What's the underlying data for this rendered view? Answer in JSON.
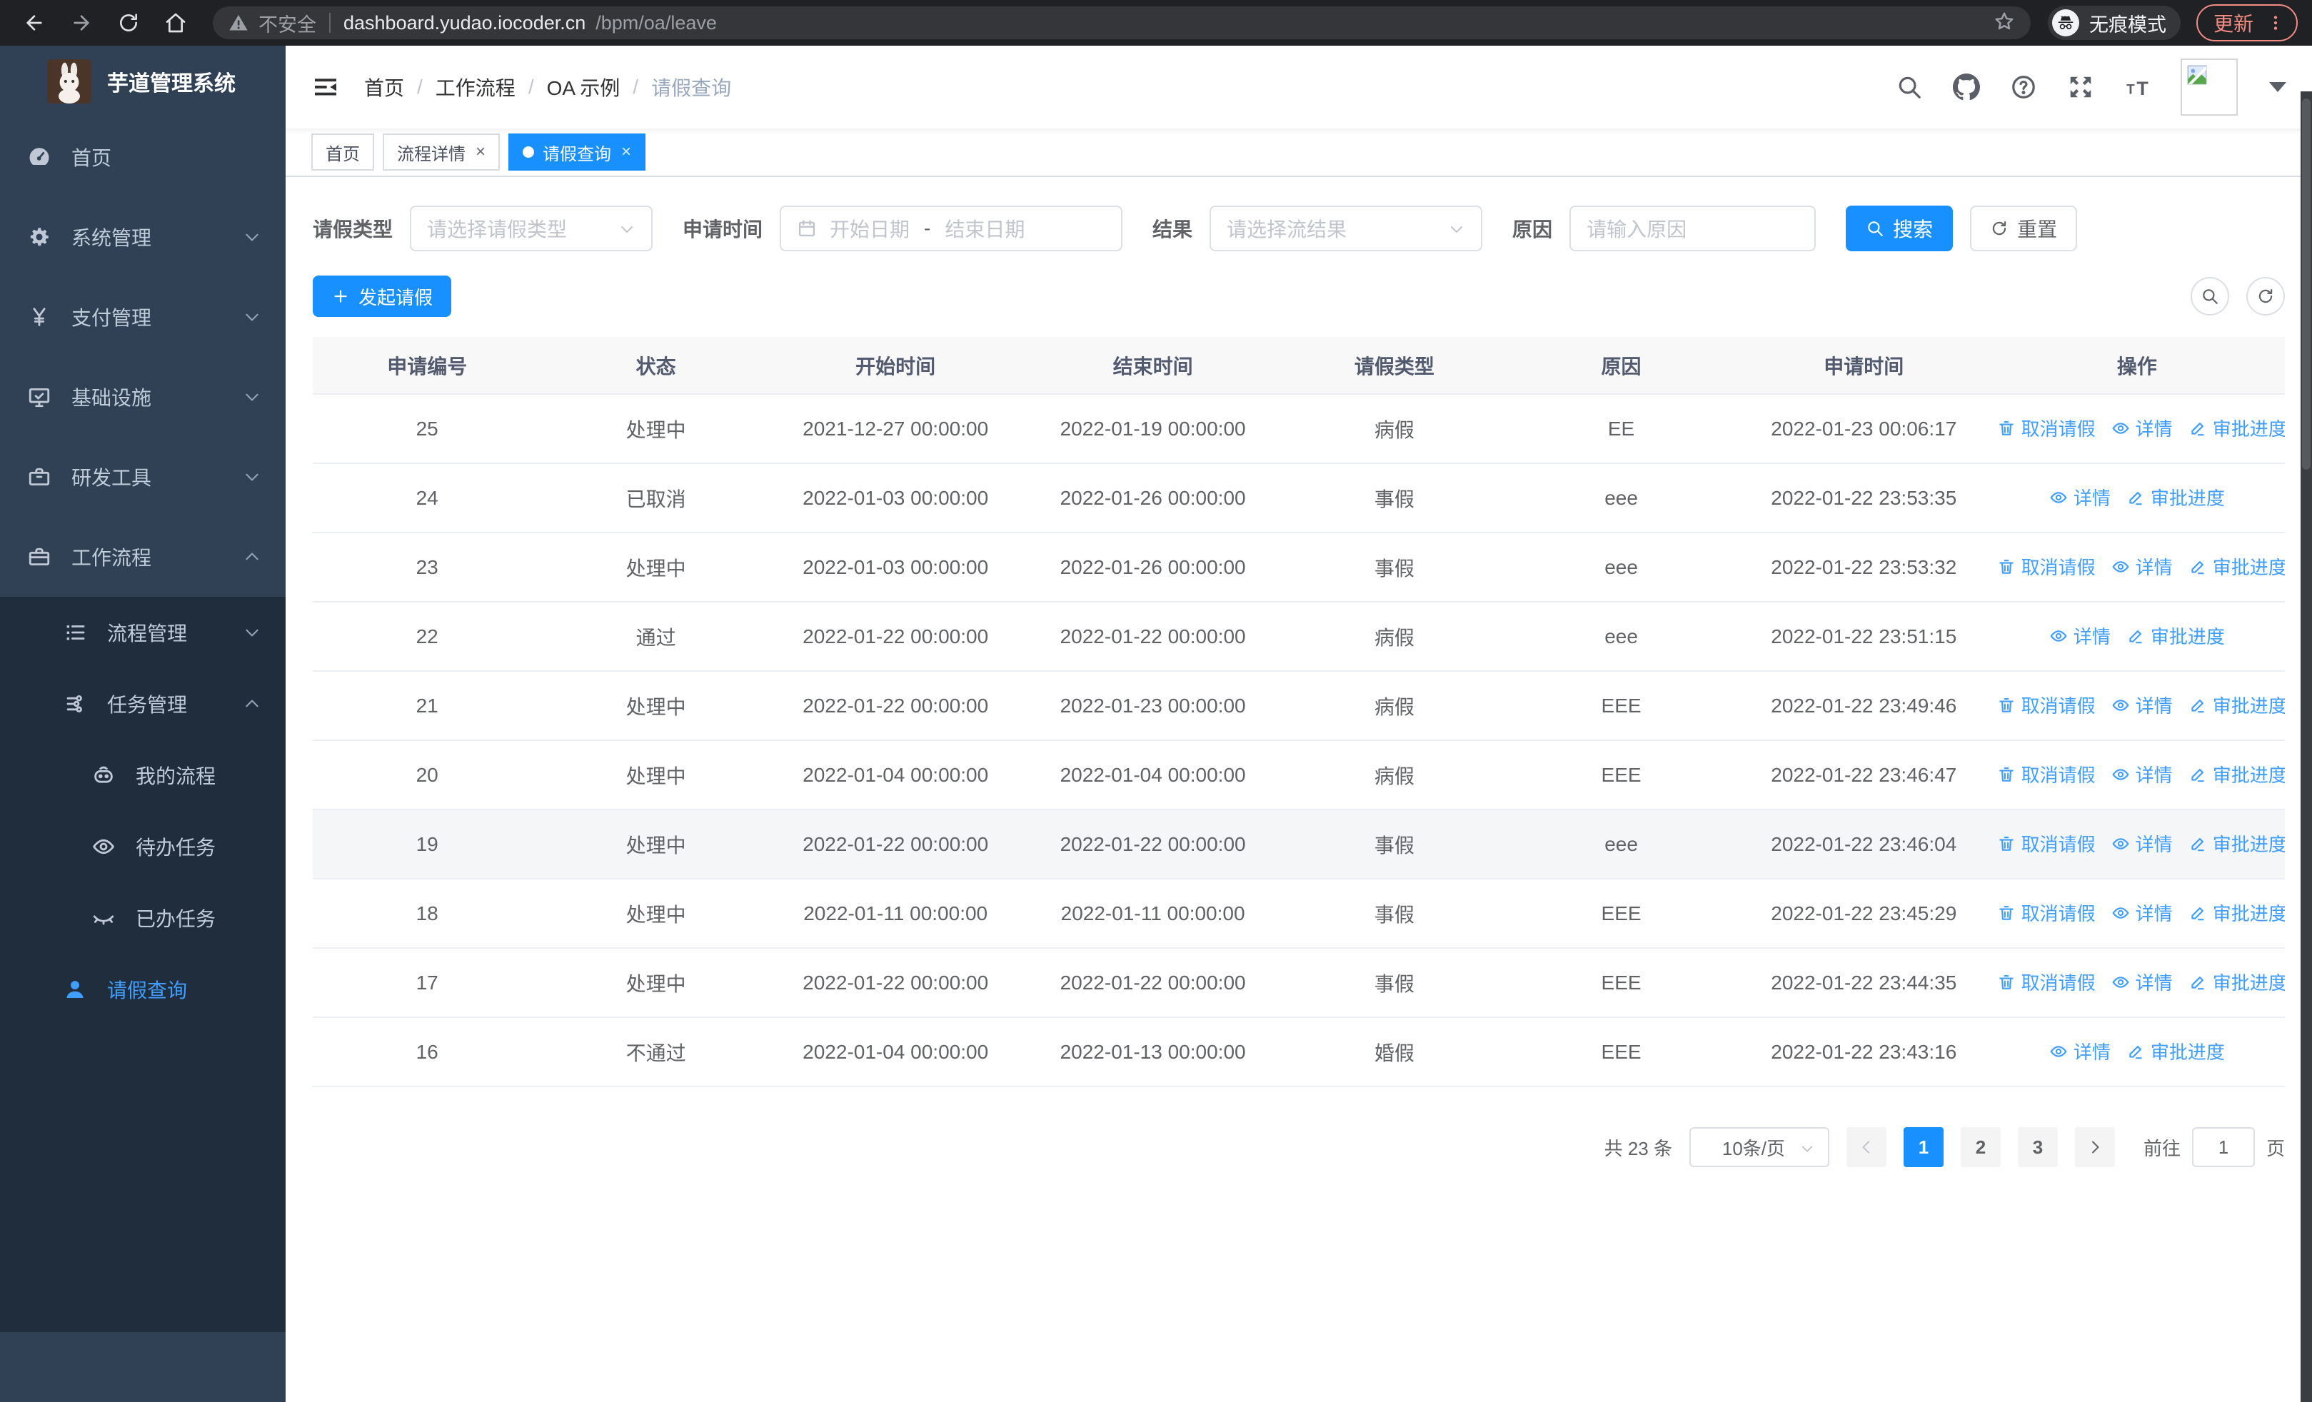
{
  "colors": {
    "primary": "#1890ff",
    "link_blue": "#409eff",
    "sidebar_bg": "#304156",
    "submenu_bg": "#1f2d3d",
    "sidebar_text": "#bfcbd9",
    "update_accent": "#f28b82",
    "tab_active_bg": "#1890ff"
  },
  "browser": {
    "security_label": "不安全",
    "url_host": "dashboard.yudao.iocoder.cn",
    "url_path": "/bpm/oa/leave",
    "incognito_label": "无痕模式",
    "update_label": "更新"
  },
  "sidebar": {
    "title": "芋道管理系统",
    "menu": [
      {
        "label": "首页",
        "icon": "dashboard-icon",
        "arrow": ""
      },
      {
        "label": "系统管理",
        "icon": "gear-icon",
        "arrow": "down"
      },
      {
        "label": "支付管理",
        "icon": "yen-icon",
        "arrow": "down"
      },
      {
        "label": "基础设施",
        "icon": "monitor-icon",
        "arrow": "down"
      },
      {
        "label": "研发工具",
        "icon": "toolbox-icon",
        "arrow": "down"
      },
      {
        "label": "工作流程",
        "icon": "briefcase-icon",
        "arrow": "up"
      }
    ],
    "submenu": [
      {
        "label": "流程管理",
        "icon": "list-icon",
        "arrow": "down",
        "level": 2,
        "active": false
      },
      {
        "label": "任务管理",
        "icon": "flow-icon",
        "arrow": "up",
        "level": 2,
        "active": false
      },
      {
        "label": "我的流程",
        "icon": "robot-icon",
        "arrow": "",
        "level": 3,
        "active": false
      },
      {
        "label": "待办任务",
        "icon": "eye-icon",
        "arrow": "",
        "level": 3,
        "active": false
      },
      {
        "label": "已办任务",
        "icon": "eye-closed-icon",
        "arrow": "",
        "level": 3,
        "active": false
      },
      {
        "label": "请假查询",
        "icon": "user-icon",
        "arrow": "",
        "level": 2,
        "active": true
      }
    ]
  },
  "header": {
    "breadcrumb": [
      "首页",
      "工作流程",
      "OA 示例",
      "请假查询"
    ],
    "icons": [
      "search-icon",
      "github-icon",
      "question-icon",
      "fullscreen-icon",
      "fontsize-icon"
    ]
  },
  "tabs": [
    {
      "label": "首页",
      "active": false,
      "closable": false
    },
    {
      "label": "流程详情",
      "active": false,
      "closable": true
    },
    {
      "label": "请假查询",
      "active": true,
      "closable": true
    }
  ],
  "filters": {
    "leave_type_label": "请假类型",
    "leave_type_placeholder": "请选择请假类型",
    "apply_time_label": "申请时间",
    "start_date_placeholder": "开始日期",
    "date_separator": "-",
    "end_date_placeholder": "结束日期",
    "result_label": "结果",
    "result_placeholder": "请选择流结果",
    "reason_label": "原因",
    "reason_placeholder": "请输入原因",
    "search_label": "搜索",
    "reset_label": "重置"
  },
  "toolbar": {
    "create_label": "发起请假"
  },
  "table": {
    "columns": [
      "申请编号",
      "状态",
      "开始时间",
      "结束时间",
      "请假类型",
      "原因",
      "申请时间",
      "操作"
    ],
    "action_defs": {
      "cancel": {
        "label": "取消请假",
        "icon": "trash-icon"
      },
      "detail": {
        "label": "详情",
        "icon": "eye-icon"
      },
      "progress": {
        "label": "审批进度",
        "icon": "edit-icon"
      }
    },
    "rows": [
      {
        "id": "25",
        "status": "处理中",
        "start": "2021-12-27 00:00:00",
        "end": "2022-01-19 00:00:00",
        "type": "病假",
        "reason": "EE",
        "applied": "2022-01-23 00:06:17",
        "actions": [
          "cancel",
          "detail",
          "progress"
        ],
        "highlight": false
      },
      {
        "id": "24",
        "status": "已取消",
        "start": "2022-01-03 00:00:00",
        "end": "2022-01-26 00:00:00",
        "type": "事假",
        "reason": "eee",
        "applied": "2022-01-22 23:53:35",
        "actions": [
          "detail",
          "progress"
        ],
        "highlight": false
      },
      {
        "id": "23",
        "status": "处理中",
        "start": "2022-01-03 00:00:00",
        "end": "2022-01-26 00:00:00",
        "type": "事假",
        "reason": "eee",
        "applied": "2022-01-22 23:53:32",
        "actions": [
          "cancel",
          "detail",
          "progress"
        ],
        "highlight": false
      },
      {
        "id": "22",
        "status": "通过",
        "start": "2022-01-22 00:00:00",
        "end": "2022-01-22 00:00:00",
        "type": "病假",
        "reason": "eee",
        "applied": "2022-01-22 23:51:15",
        "actions": [
          "detail",
          "progress"
        ],
        "highlight": false
      },
      {
        "id": "21",
        "status": "处理中",
        "start": "2022-01-22 00:00:00",
        "end": "2022-01-23 00:00:00",
        "type": "病假",
        "reason": "EEE",
        "applied": "2022-01-22 23:49:46",
        "actions": [
          "cancel",
          "detail",
          "progress"
        ],
        "highlight": false
      },
      {
        "id": "20",
        "status": "处理中",
        "start": "2022-01-04 00:00:00",
        "end": "2022-01-04 00:00:00",
        "type": "病假",
        "reason": "EEE",
        "applied": "2022-01-22 23:46:47",
        "actions": [
          "cancel",
          "detail",
          "progress"
        ],
        "highlight": false
      },
      {
        "id": "19",
        "status": "处理中",
        "start": "2022-01-22 00:00:00",
        "end": "2022-01-22 00:00:00",
        "type": "事假",
        "reason": "eee",
        "applied": "2022-01-22 23:46:04",
        "actions": [
          "cancel",
          "detail",
          "progress"
        ],
        "highlight": true
      },
      {
        "id": "18",
        "status": "处理中",
        "start": "2022-01-11 00:00:00",
        "end": "2022-01-11 00:00:00",
        "type": "事假",
        "reason": "EEE",
        "applied": "2022-01-22 23:45:29",
        "actions": [
          "cancel",
          "detail",
          "progress"
        ],
        "highlight": false
      },
      {
        "id": "17",
        "status": "处理中",
        "start": "2022-01-22 00:00:00",
        "end": "2022-01-22 00:00:00",
        "type": "事假",
        "reason": "EEE",
        "applied": "2022-01-22 23:44:35",
        "actions": [
          "cancel",
          "detail",
          "progress"
        ],
        "highlight": false
      },
      {
        "id": "16",
        "status": "不通过",
        "start": "2022-01-04 00:00:00",
        "end": "2022-01-13 00:00:00",
        "type": "婚假",
        "reason": "EEE",
        "applied": "2022-01-22 23:43:16",
        "actions": [
          "detail",
          "progress"
        ],
        "highlight": false
      }
    ]
  },
  "pagination": {
    "total_label": "共 23 条",
    "page_size_label": "10条/页",
    "pages": [
      "1",
      "2",
      "3"
    ],
    "current_page": "1",
    "goto_label": "前往",
    "goto_value": "1",
    "page_unit": "页"
  }
}
